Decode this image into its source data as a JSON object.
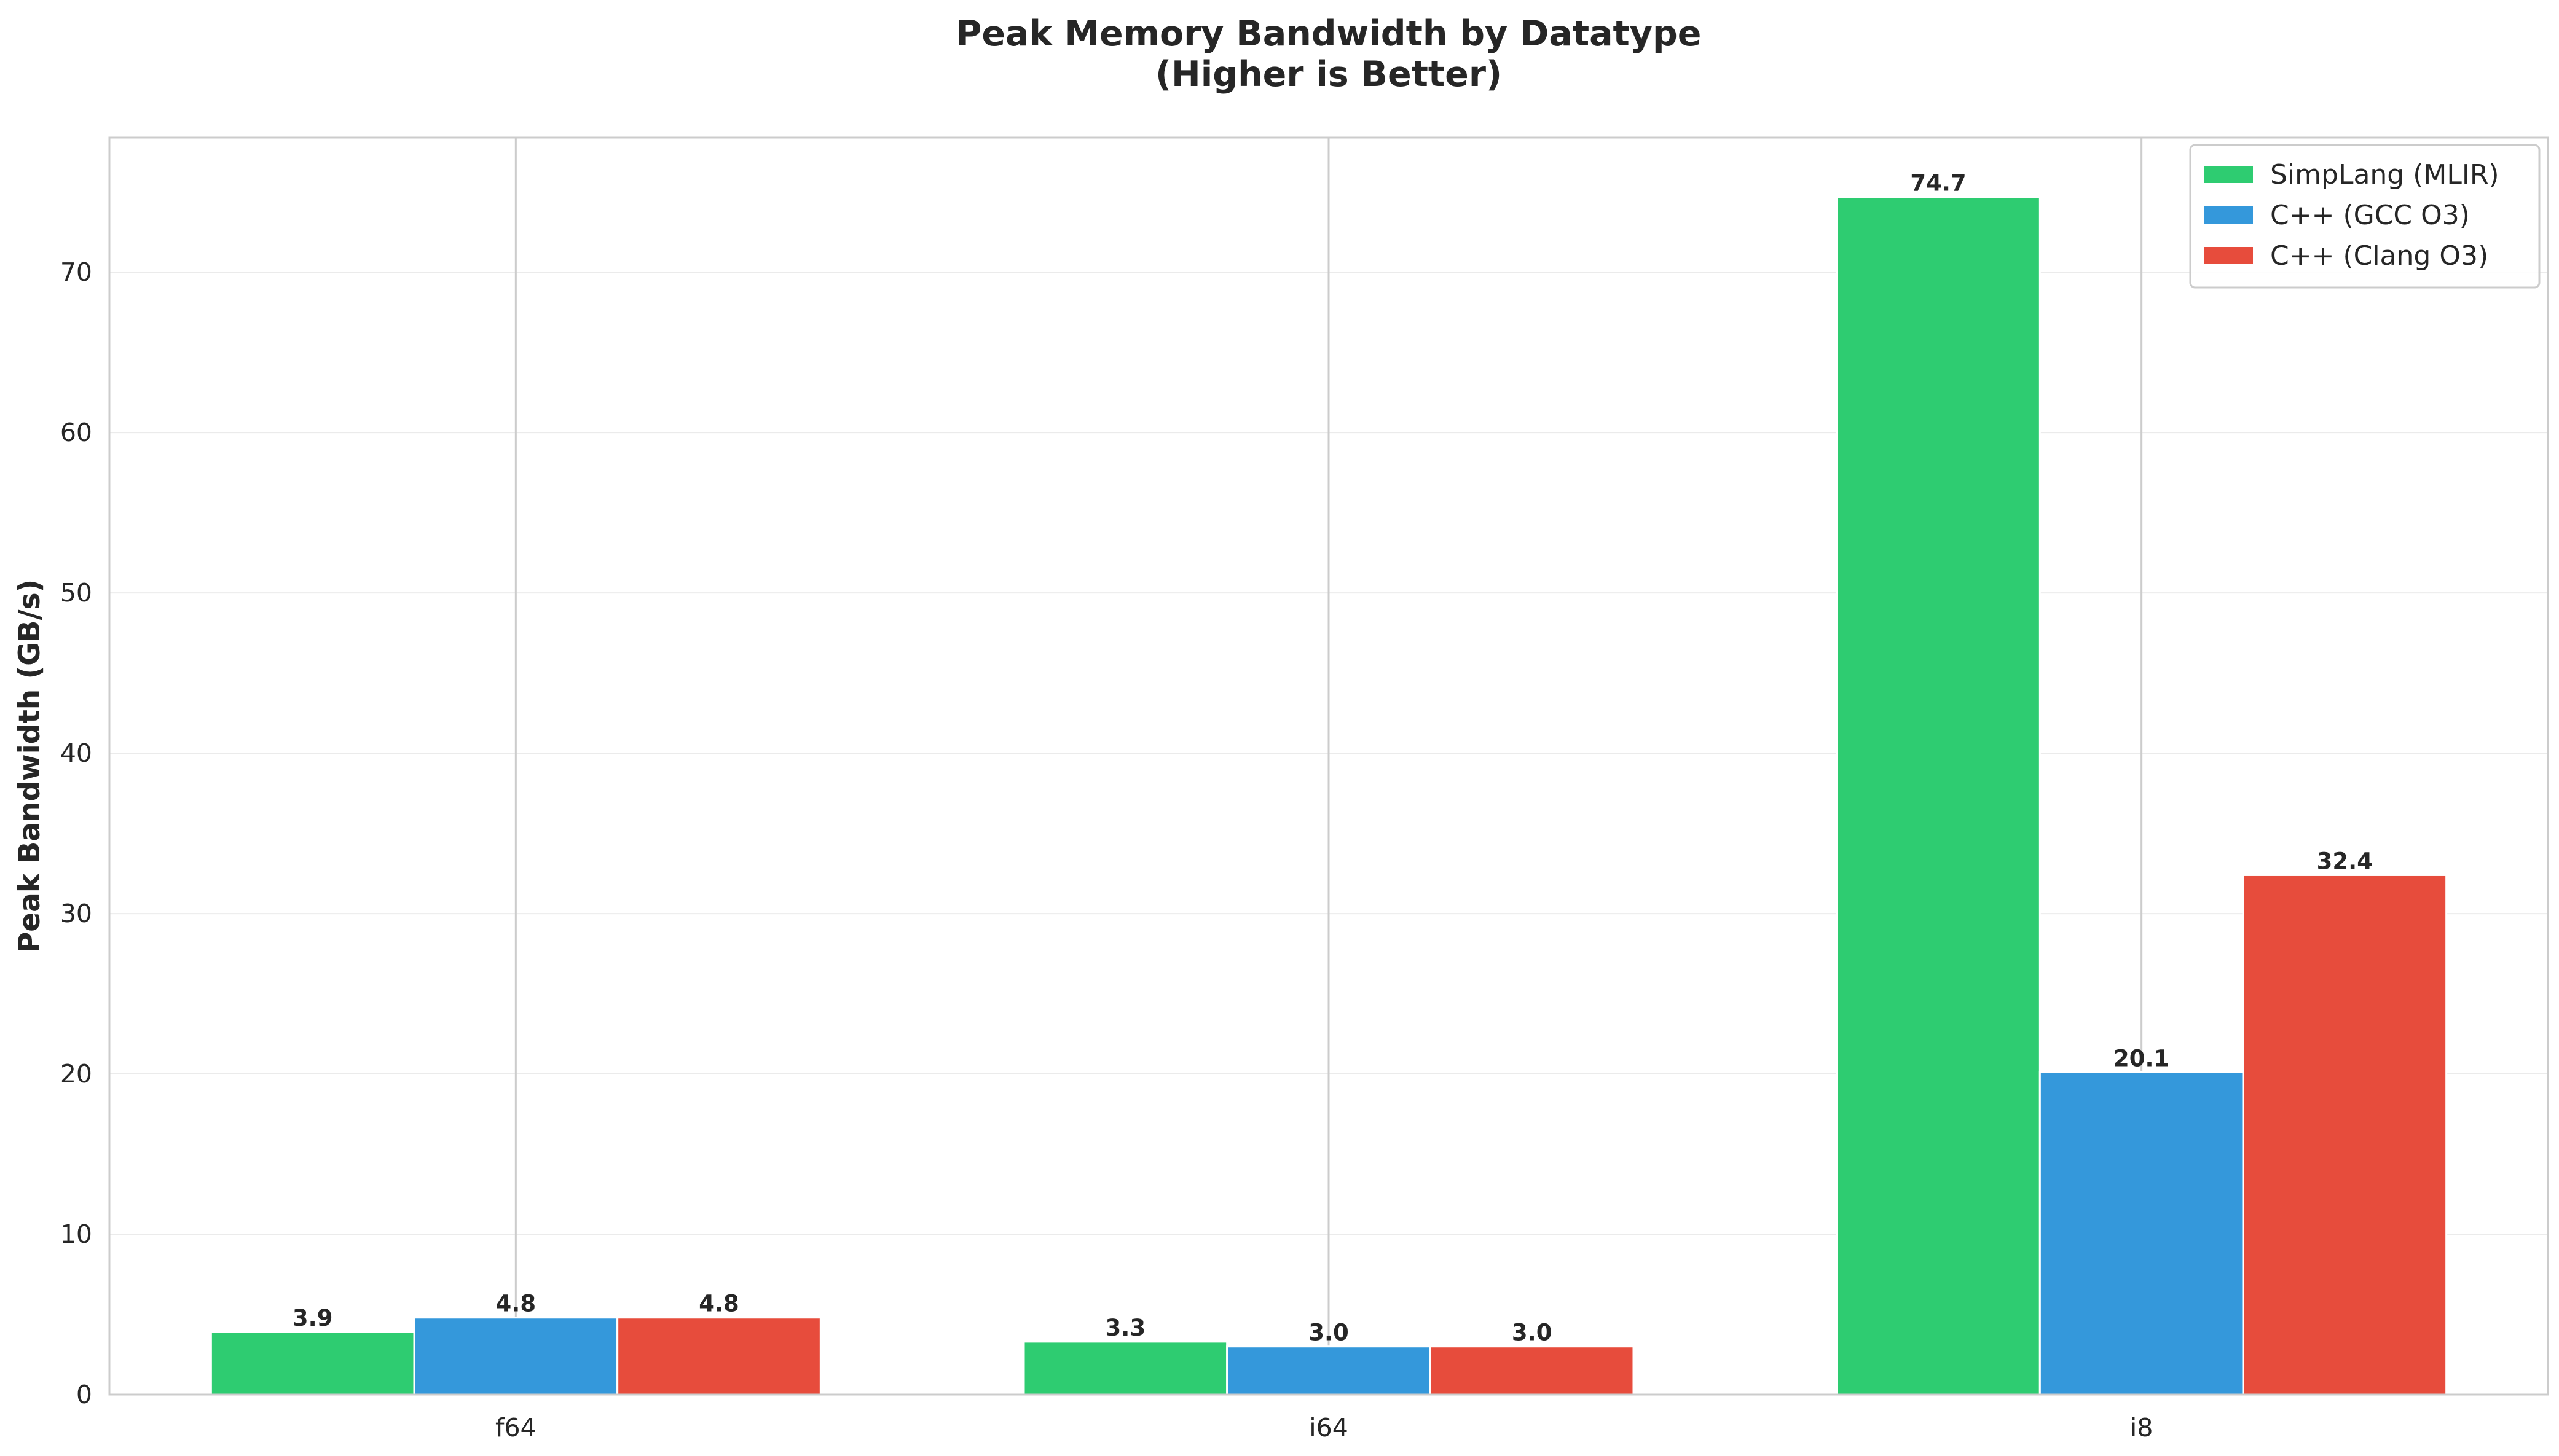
{
  "chart_data": {
    "type": "bar",
    "title": "Peak Memory Bandwidth by Datatype",
    "subtitle": "(Higher is Better)",
    "xlabel": "",
    "ylabel": "Peak Bandwidth (GB/s)",
    "categories": [
      "f64",
      "i64",
      "i8"
    ],
    "ylim": [
      0,
      78.4
    ],
    "yticks": [
      0,
      10,
      20,
      30,
      40,
      50,
      60,
      70
    ],
    "grid": true,
    "legend_position": "top-right",
    "series": [
      {
        "name": "SimpLang (MLIR)",
        "color": "#2ecc71",
        "values": [
          3.9,
          3.3,
          74.7
        ],
        "labels": [
          "3.9",
          "3.3",
          "74.7"
        ]
      },
      {
        "name": "C++ (GCC O3)",
        "color": "#3498db",
        "values": [
          4.8,
          3.0,
          20.1
        ],
        "labels": [
          "4.8",
          "3.0",
          "20.1"
        ]
      },
      {
        "name": "C++ (Clang O3)",
        "color": "#e74c3c",
        "values": [
          4.8,
          3.0,
          32.4
        ],
        "labels": [
          "4.8",
          "3.0",
          "32.4"
        ]
      }
    ]
  }
}
